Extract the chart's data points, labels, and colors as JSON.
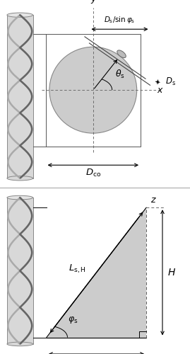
{
  "fig_width": 2.69,
  "fig_height": 5.0,
  "dpi": 100,
  "bg_color": "#ffffff",
  "cyl_face": "#d8d8d8",
  "cyl_edge": "#888888",
  "helix_bg": "#aaaaaa",
  "helix_fg": "#666666",
  "ellipse_face": "#cccccc",
  "ellipse_edge": "#888888",
  "triangle_face": "#cccccc",
  "dim_color": "#000000",
  "dash_color": "#666666",
  "box_color": "#555555",
  "sep_color": "#aaaaaa"
}
